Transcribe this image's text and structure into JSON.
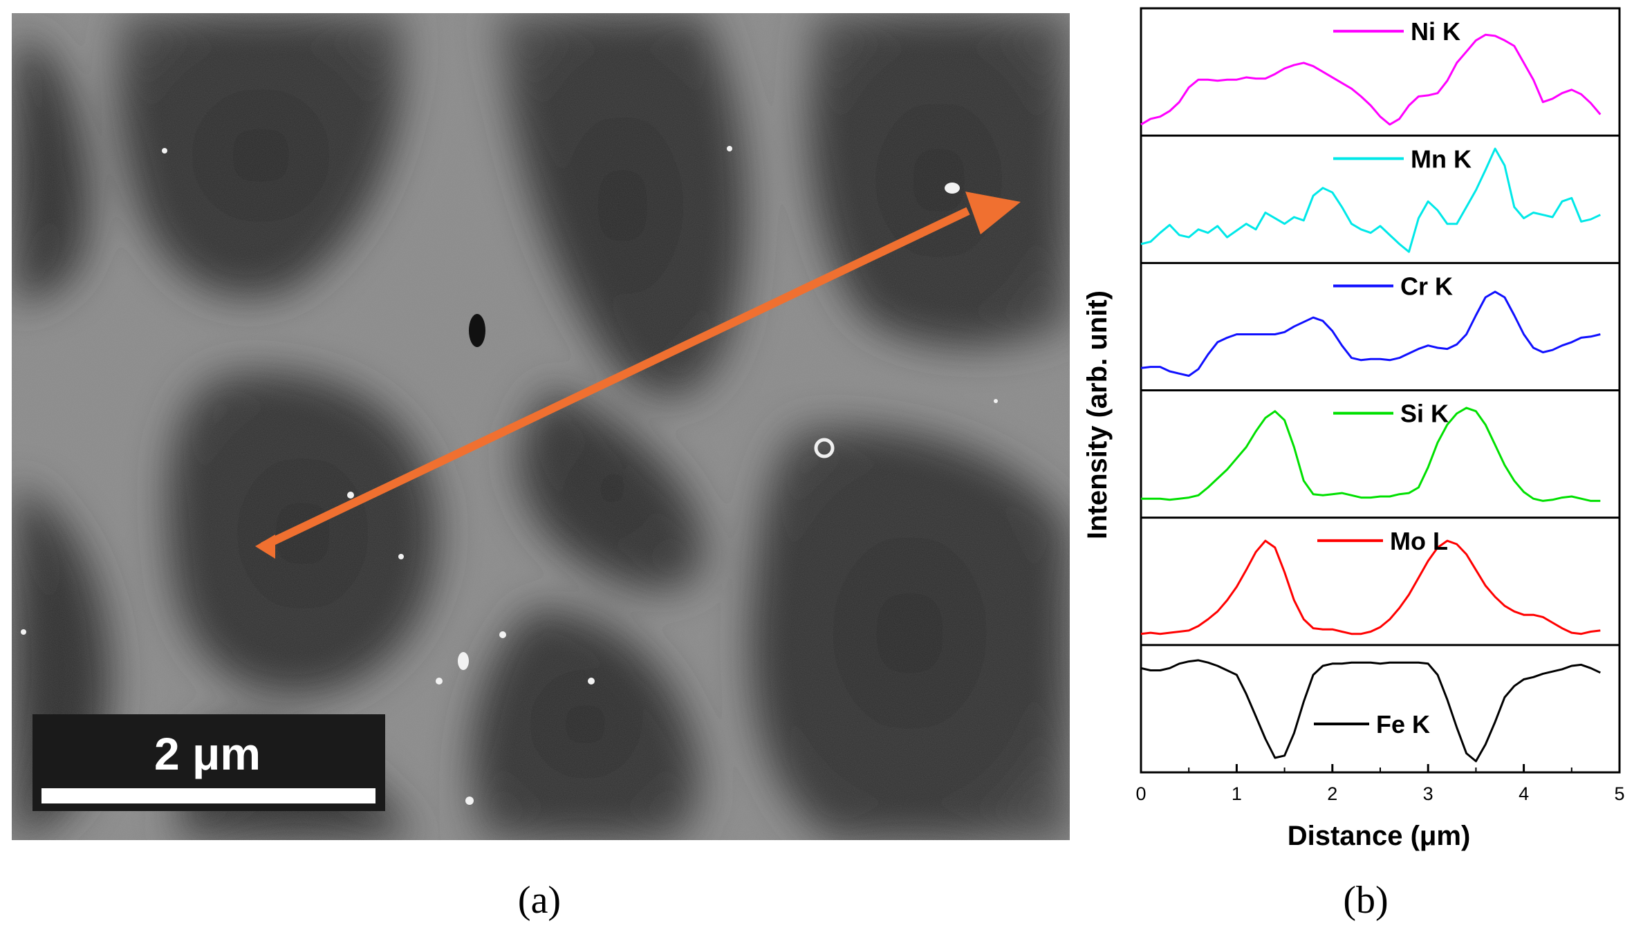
{
  "panel_a": {
    "caption": "(a)",
    "scale_bar_label": "2 μm"
  },
  "panel_b": {
    "caption": "(b)"
  },
  "colors": {
    "arrow": "#f07030",
    "background": "#ffffff"
  },
  "chart_data": {
    "type": "line",
    "title": "",
    "xlabel": "Distance (μm)",
    "ylabel": "Intensity (arb. unit)",
    "xlim": [
      0,
      5
    ],
    "xticks": [
      "0",
      "1",
      "2",
      "3",
      "4",
      "5"
    ],
    "ylim": [
      0,
      1
    ],
    "grid": false,
    "legend": "inline, one entry per stacked panel",
    "series": [
      {
        "name": "Ni K",
        "color": "#ff00ff",
        "x": [
          0,
          0.1,
          0.2,
          0.3,
          0.4,
          0.5,
          0.6,
          0.7,
          0.8,
          0.9,
          1.0,
          1.1,
          1.2,
          1.3,
          1.4,
          1.5,
          1.6,
          1.7,
          1.8,
          1.9,
          2.0,
          2.1,
          2.2,
          2.3,
          2.4,
          2.5,
          2.6,
          2.7,
          2.8,
          2.9,
          3.0,
          3.1,
          3.2,
          3.3,
          3.4,
          3.5,
          3.6,
          3.7,
          3.8,
          3.9,
          4.0,
          4.1,
          4.2,
          4.3,
          4.4,
          4.5,
          4.6,
          4.7,
          4.8
        ],
        "y": [
          0.05,
          0.1,
          0.12,
          0.17,
          0.25,
          0.38,
          0.45,
          0.45,
          0.44,
          0.45,
          0.45,
          0.47,
          0.46,
          0.46,
          0.5,
          0.55,
          0.58,
          0.6,
          0.57,
          0.52,
          0.47,
          0.42,
          0.37,
          0.3,
          0.22,
          0.12,
          0.05,
          0.1,
          0.22,
          0.3,
          0.31,
          0.33,
          0.44,
          0.6,
          0.7,
          0.8,
          0.85,
          0.84,
          0.8,
          0.75,
          0.6,
          0.45,
          0.25,
          0.28,
          0.33,
          0.36,
          0.32,
          0.24,
          0.14
        ]
      },
      {
        "name": "Mn K",
        "color": "#00e8e8",
        "x": [
          0,
          0.1,
          0.2,
          0.3,
          0.4,
          0.5,
          0.6,
          0.7,
          0.8,
          0.9,
          1.0,
          1.1,
          1.2,
          1.3,
          1.4,
          1.5,
          1.6,
          1.7,
          1.8,
          1.9,
          2.0,
          2.1,
          2.2,
          2.3,
          2.4,
          2.5,
          2.6,
          2.7,
          2.8,
          2.9,
          3.0,
          3.1,
          3.2,
          3.3,
          3.4,
          3.5,
          3.6,
          3.7,
          3.8,
          3.9,
          4.0,
          4.1,
          4.2,
          4.3,
          4.4,
          4.5,
          4.6,
          4.7,
          4.8
        ],
        "y": [
          0.12,
          0.14,
          0.22,
          0.29,
          0.2,
          0.18,
          0.25,
          0.22,
          0.28,
          0.18,
          0.24,
          0.3,
          0.25,
          0.4,
          0.35,
          0.3,
          0.36,
          0.33,
          0.55,
          0.62,
          0.58,
          0.45,
          0.3,
          0.25,
          0.22,
          0.28,
          0.2,
          0.12,
          0.05,
          0.35,
          0.5,
          0.42,
          0.3,
          0.3,
          0.45,
          0.6,
          0.78,
          0.97,
          0.82,
          0.45,
          0.35,
          0.4,
          0.38,
          0.36,
          0.5,
          0.53,
          0.32,
          0.34,
          0.38
        ]
      },
      {
        "name": "Cr K",
        "color": "#1010ff",
        "x": [
          0,
          0.1,
          0.2,
          0.3,
          0.4,
          0.5,
          0.6,
          0.7,
          0.8,
          0.9,
          1.0,
          1.1,
          1.2,
          1.3,
          1.4,
          1.5,
          1.6,
          1.7,
          1.8,
          1.9,
          2.0,
          2.1,
          2.2,
          2.3,
          2.4,
          2.5,
          2.6,
          2.7,
          2.8,
          2.9,
          3.0,
          3.1,
          3.2,
          3.3,
          3.4,
          3.5,
          3.6,
          3.7,
          3.8,
          3.9,
          4.0,
          4.1,
          4.2,
          4.3,
          4.4,
          4.5,
          4.6,
          4.7,
          4.8
        ],
        "y": [
          0.15,
          0.16,
          0.16,
          0.12,
          0.1,
          0.08,
          0.14,
          0.27,
          0.38,
          0.42,
          0.45,
          0.45,
          0.45,
          0.45,
          0.45,
          0.47,
          0.52,
          0.56,
          0.6,
          0.57,
          0.48,
          0.35,
          0.24,
          0.22,
          0.23,
          0.23,
          0.22,
          0.24,
          0.28,
          0.32,
          0.35,
          0.33,
          0.32,
          0.36,
          0.45,
          0.62,
          0.78,
          0.83,
          0.78,
          0.62,
          0.45,
          0.33,
          0.29,
          0.31,
          0.35,
          0.38,
          0.42,
          0.43,
          0.45
        ]
      },
      {
        "name": "Si K",
        "color": "#00e000",
        "x": [
          0,
          0.1,
          0.2,
          0.3,
          0.4,
          0.5,
          0.6,
          0.7,
          0.8,
          0.9,
          1.0,
          1.1,
          1.2,
          1.3,
          1.4,
          1.5,
          1.6,
          1.7,
          1.8,
          1.9,
          2.0,
          2.1,
          2.2,
          2.3,
          2.4,
          2.5,
          2.6,
          2.7,
          2.8,
          2.9,
          3.0,
          3.1,
          3.2,
          3.3,
          3.4,
          3.5,
          3.6,
          3.7,
          3.8,
          3.9,
          4.0,
          4.1,
          4.2,
          4.3,
          4.4,
          4.5,
          4.6,
          4.7,
          4.8
        ],
        "y": [
          0.12,
          0.12,
          0.12,
          0.11,
          0.12,
          0.13,
          0.15,
          0.22,
          0.3,
          0.38,
          0.48,
          0.58,
          0.72,
          0.84,
          0.9,
          0.82,
          0.58,
          0.28,
          0.16,
          0.15,
          0.16,
          0.17,
          0.15,
          0.13,
          0.13,
          0.14,
          0.14,
          0.16,
          0.17,
          0.22,
          0.4,
          0.62,
          0.78,
          0.88,
          0.93,
          0.9,
          0.78,
          0.6,
          0.42,
          0.28,
          0.18,
          0.12,
          0.1,
          0.11,
          0.13,
          0.14,
          0.12,
          0.1,
          0.1
        ]
      },
      {
        "name": "Mo L",
        "color": "#ff0000",
        "x": [
          0,
          0.1,
          0.2,
          0.3,
          0.4,
          0.5,
          0.6,
          0.7,
          0.8,
          0.9,
          1.0,
          1.1,
          1.2,
          1.3,
          1.4,
          1.5,
          1.6,
          1.7,
          1.8,
          1.9,
          2.0,
          2.1,
          2.2,
          2.3,
          2.4,
          2.5,
          2.6,
          2.7,
          2.8,
          2.9,
          3.0,
          3.1,
          3.2,
          3.3,
          3.4,
          3.5,
          3.6,
          3.7,
          3.8,
          3.9,
          4.0,
          4.1,
          4.2,
          4.3,
          4.4,
          4.5,
          4.6,
          4.7,
          4.8
        ],
        "y": [
          0.05,
          0.06,
          0.05,
          0.06,
          0.07,
          0.08,
          0.12,
          0.18,
          0.25,
          0.35,
          0.47,
          0.62,
          0.78,
          0.88,
          0.82,
          0.6,
          0.35,
          0.18,
          0.1,
          0.09,
          0.09,
          0.07,
          0.05,
          0.05,
          0.07,
          0.11,
          0.18,
          0.28,
          0.4,
          0.55,
          0.7,
          0.82,
          0.88,
          0.85,
          0.76,
          0.62,
          0.48,
          0.38,
          0.3,
          0.25,
          0.22,
          0.22,
          0.2,
          0.15,
          0.1,
          0.06,
          0.05,
          0.07,
          0.08
        ]
      },
      {
        "name": "Fe K",
        "color": "#000000",
        "x": [
          0,
          0.1,
          0.2,
          0.3,
          0.4,
          0.5,
          0.6,
          0.7,
          0.8,
          0.9,
          1.0,
          1.1,
          1.2,
          1.3,
          1.4,
          1.5,
          1.6,
          1.7,
          1.8,
          1.9,
          2.0,
          2.1,
          2.2,
          2.3,
          2.4,
          2.5,
          2.6,
          2.7,
          2.8,
          2.9,
          3.0,
          3.1,
          3.2,
          3.3,
          3.4,
          3.5,
          3.6,
          3.7,
          3.8,
          3.9,
          4.0,
          4.1,
          4.2,
          4.3,
          4.4,
          4.5,
          4.6,
          4.7,
          4.8
        ],
        "y": [
          0.88,
          0.86,
          0.86,
          0.88,
          0.92,
          0.94,
          0.95,
          0.93,
          0.9,
          0.86,
          0.82,
          0.65,
          0.45,
          0.25,
          0.08,
          0.1,
          0.3,
          0.58,
          0.82,
          0.9,
          0.92,
          0.92,
          0.93,
          0.93,
          0.93,
          0.92,
          0.93,
          0.93,
          0.93,
          0.93,
          0.92,
          0.82,
          0.6,
          0.35,
          0.12,
          0.05,
          0.2,
          0.4,
          0.62,
          0.72,
          0.78,
          0.8,
          0.83,
          0.85,
          0.87,
          0.9,
          0.91,
          0.88,
          0.84
        ]
      }
    ]
  }
}
